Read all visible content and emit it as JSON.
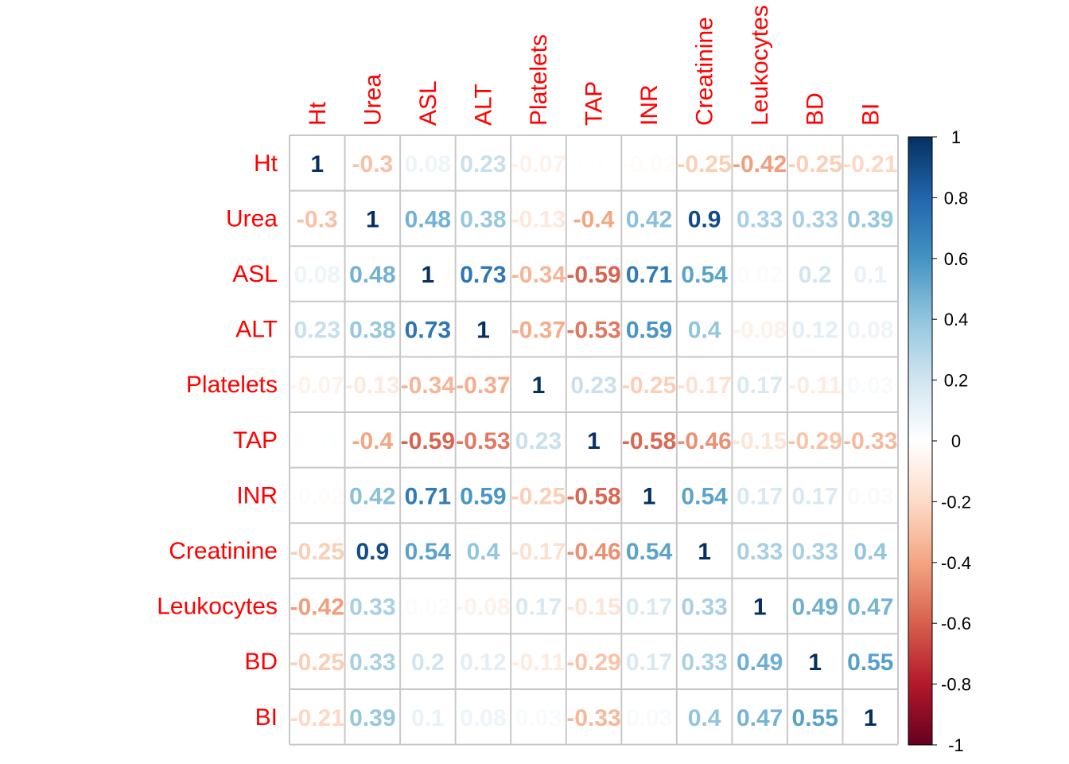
{
  "chart_data": {
    "type": "heatmap",
    "variables": [
      "Ht",
      "Urea",
      "ASL",
      "ALT",
      "Platelets",
      "TAP",
      "INR",
      "Creatinine",
      "Leukocytes",
      "BD",
      "BI"
    ],
    "matrix": [
      [
        1,
        -0.3,
        0.08,
        0.23,
        -0.07,
        0.01,
        -0.02,
        -0.25,
        -0.42,
        -0.25,
        -0.21
      ],
      [
        -0.3,
        1,
        0.48,
        0.38,
        -0.13,
        -0.4,
        0.42,
        0.9,
        0.33,
        0.33,
        0.39
      ],
      [
        0.08,
        0.48,
        1,
        0.73,
        -0.34,
        -0.59,
        0.71,
        0.54,
        0.02,
        0.2,
        0.1
      ],
      [
        0.23,
        0.38,
        0.73,
        1,
        -0.37,
        -0.53,
        0.59,
        0.4,
        -0.08,
        0.12,
        0.08
      ],
      [
        -0.07,
        -0.13,
        -0.34,
        -0.37,
        1,
        0.23,
        -0.25,
        -0.17,
        0.17,
        -0.11,
        0.03
      ],
      [
        0.01,
        -0.4,
        -0.59,
        -0.53,
        0.23,
        1,
        -0.58,
        -0.46,
        -0.15,
        -0.29,
        -0.33
      ],
      [
        -0.02,
        0.42,
        0.71,
        0.59,
        -0.25,
        -0.58,
        1,
        0.54,
        0.17,
        0.17,
        0.03
      ],
      [
        -0.25,
        0.9,
        0.54,
        0.4,
        -0.17,
        -0.46,
        0.54,
        1,
        0.33,
        0.33,
        0.4
      ],
      [
        -0.42,
        0.33,
        0.02,
        -0.08,
        0.17,
        -0.15,
        0.17,
        0.33,
        1,
        0.49,
        0.47
      ],
      [
        -0.25,
        0.33,
        0.2,
        0.12,
        -0.11,
        -0.29,
        0.17,
        0.33,
        0.49,
        1,
        0.55
      ],
      [
        -0.21,
        0.39,
        0.1,
        0.08,
        0.03,
        -0.33,
        0.03,
        0.4,
        0.47,
        0.55,
        1
      ]
    ],
    "color_range": [
      -1,
      1
    ],
    "colorbar_ticks": [
      "1",
      "0.8",
      "0.6",
      "0.4",
      "0.2",
      "0",
      "-0.2",
      "-0.4",
      "-0.6",
      "-0.8",
      "-1"
    ],
    "colorbar_tick_values": [
      1,
      0.8,
      0.6,
      0.4,
      0.2,
      0,
      -0.2,
      -0.4,
      -0.6,
      -0.8,
      -1
    ],
    "colormap_stops": [
      "#67001F",
      "#B2182B",
      "#D6604D",
      "#F4A582",
      "#FDDBC7",
      "#FFFFFF",
      "#D1E5F0",
      "#92C5DE",
      "#4393C3",
      "#2166AC",
      "#053061"
    ],
    "label_color": "#FF0000",
    "grid_color": "#C8C8C8",
    "legend_position": "right"
  }
}
